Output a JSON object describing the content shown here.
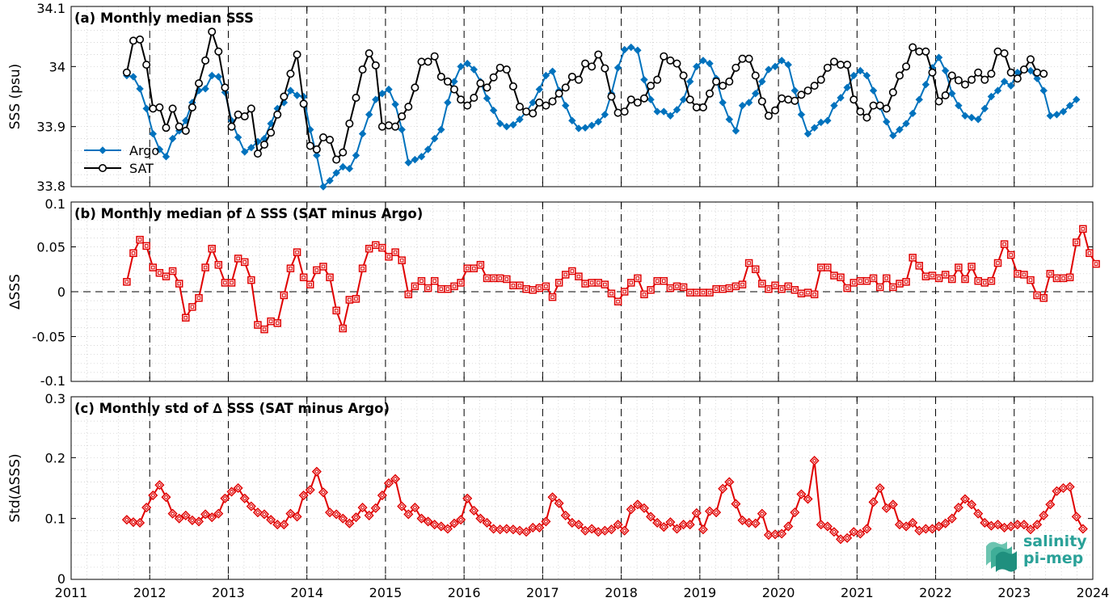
{
  "colors": {
    "argo": "#0072bd",
    "sat": "#000000",
    "delta": "#e00000",
    "logo": "#2aa198"
  },
  "logo": {
    "line1": "salinity",
    "line2": "pi-mep",
    "icon": "stacked-waves-logo"
  },
  "chart_data": [
    {
      "type": "line",
      "title": "(a) Monthly median SSS",
      "xlabel": "",
      "ylabel": "SSS (psu)",
      "xlim": [
        2011,
        2024
      ],
      "ylim": [
        33.8,
        34.1
      ],
      "yticks": [
        "33.8",
        "33.9",
        "34",
        "34.1"
      ],
      "grid": true,
      "legend_position": "lower-left",
      "start": "2011-09",
      "series": [
        {
          "name": "Argo",
          "marker": "diamond-filled",
          "values": [
            33.985,
            33.983,
            33.963,
            33.93,
            33.888,
            33.862,
            33.85,
            33.88,
            33.893,
            33.91,
            33.94,
            33.96,
            33.963,
            33.985,
            33.983,
            33.957,
            33.91,
            33.882,
            33.858,
            33.865,
            33.875,
            33.88,
            33.905,
            33.93,
            33.94,
            33.96,
            33.952,
            33.95,
            33.895,
            33.852,
            33.8,
            33.81,
            33.823,
            33.833,
            33.83,
            33.852,
            33.888,
            33.92,
            33.945,
            33.955,
            33.962,
            33.937,
            33.895,
            33.84,
            33.845,
            33.85,
            33.862,
            33.88,
            33.895,
            33.94,
            33.975,
            34.0,
            34.005,
            33.995,
            33.975,
            33.947,
            33.927,
            33.905,
            33.9,
            33.903,
            33.912,
            33.925,
            33.94,
            33.962,
            33.985,
            33.992,
            33.96,
            33.935,
            33.91,
            33.897,
            33.898,
            33.902,
            33.908,
            33.92,
            33.955,
            33.998,
            34.028,
            34.032,
            34.027,
            33.978,
            33.945,
            33.925,
            33.925,
            33.918,
            33.928,
            33.945,
            33.975,
            34.0,
            34.01,
            34.005,
            33.98,
            33.94,
            33.912,
            33.893,
            33.935,
            33.94,
            33.955,
            33.975,
            33.995,
            34.0,
            34.01,
            34.003,
            33.96,
            33.92,
            33.888,
            33.898,
            33.907,
            33.91,
            33.935,
            33.948,
            33.965,
            33.985,
            33.993,
            33.985,
            33.96,
            33.933,
            33.908,
            33.885,
            33.895,
            33.905,
            33.922,
            33.945,
            33.97,
            33.998,
            34.015,
            33.993,
            33.955,
            33.935,
            33.918,
            33.915,
            33.912,
            33.93,
            33.95,
            33.96,
            33.975,
            33.968,
            33.99,
            33.995,
            33.993,
            33.98,
            33.96,
            33.918,
            33.92,
            33.925,
            33.935,
            33.945
          ]
        },
        {
          "name": "SAT",
          "marker": "circle-open",
          "values": [
            33.99,
            34.043,
            34.045,
            34.003,
            33.93,
            33.932,
            33.898,
            33.93,
            33.9,
            33.893,
            33.932,
            33.972,
            34.01,
            34.058,
            34.025,
            33.965,
            33.9,
            33.92,
            33.917,
            33.93,
            33.855,
            33.87,
            33.89,
            33.92,
            33.95,
            33.988,
            34.02,
            33.938,
            33.868,
            33.862,
            33.882,
            33.878,
            33.845,
            33.857,
            33.905,
            33.948,
            33.995,
            34.022,
            34.002,
            33.9,
            33.902,
            33.9,
            33.917,
            33.933,
            33.965,
            34.008,
            34.008,
            34.017,
            33.983,
            33.975,
            33.962,
            33.945,
            33.935,
            33.948,
            33.972,
            33.965,
            33.982,
            33.998,
            33.995,
            33.967,
            33.933,
            33.925,
            33.922,
            33.94,
            33.935,
            33.942,
            33.955,
            33.965,
            33.983,
            33.978,
            34.005,
            34.0,
            34.02,
            33.997,
            33.95,
            33.923,
            33.925,
            33.945,
            33.94,
            33.947,
            33.968,
            33.978,
            34.017,
            34.01,
            34.005,
            33.985,
            33.945,
            33.932,
            33.932,
            33.955,
            33.975,
            33.968,
            33.975,
            33.998,
            34.013,
            34.013,
            33.985,
            33.942,
            33.918,
            33.927,
            33.947,
            33.945,
            33.943,
            33.953,
            33.96,
            33.968,
            33.978,
            33.998,
            34.008,
            34.003,
            34.003,
            33.945,
            33.925,
            33.915,
            33.935,
            33.935,
            33.93,
            33.957,
            33.985,
            34.0,
            34.032,
            34.025,
            34.025,
            33.99,
            33.942,
            33.952,
            33.985,
            33.977,
            33.97,
            33.978,
            33.99,
            33.978,
            33.988,
            34.025,
            34.022,
            33.99,
            33.98,
            33.995,
            34.012,
            33.99,
            33.988
          ]
        }
      ]
    },
    {
      "type": "line",
      "title": "(b) Monthly median of ∆ SSS (SAT minus Argo)",
      "xlabel": "",
      "ylabel": "∆SSS",
      "xlim": [
        2011,
        2024
      ],
      "ylim": [
        -0.1,
        0.1
      ],
      "yticks": [
        "-0.1",
        "-0.05",
        "0",
        "0.05",
        "0.1"
      ],
      "grid": true,
      "zero_line": true,
      "start": "2011-09",
      "series": [
        {
          "marker": "square-open",
          "values": [
            0.011,
            0.043,
            0.058,
            0.051,
            0.027,
            0.021,
            0.017,
            0.023,
            0.009,
            -0.029,
            -0.017,
            -0.007,
            0.027,
            0.048,
            0.03,
            0.01,
            0.01,
            0.037,
            0.033,
            0.013,
            -0.037,
            -0.042,
            -0.033,
            -0.035,
            -0.004,
            0.026,
            0.044,
            0.016,
            0.008,
            0.024,
            0.028,
            0.016,
            -0.021,
            -0.041,
            -0.009,
            -0.008,
            0.026,
            0.048,
            0.052,
            0.049,
            0.039,
            0.044,
            0.035,
            -0.003,
            0.006,
            0.012,
            0.004,
            0.012,
            0.003,
            0.003,
            0.006,
            0.01,
            0.026,
            0.026,
            0.03,
            0.015,
            0.015,
            0.015,
            0.014,
            0.007,
            0.007,
            0.003,
            0.002,
            0.004,
            0.006,
            -0.006,
            0.01,
            0.019,
            0.023,
            0.017,
            0.009,
            0.01,
            0.01,
            0.008,
            -0.002,
            -0.011,
            0.0,
            0.01,
            0.015,
            -0.003,
            0.002,
            0.012,
            0.012,
            0.004,
            0.006,
            0.005,
            -0.001,
            -0.001,
            -0.001,
            -0.001,
            0.003,
            0.003,
            0.004,
            0.006,
            0.008,
            0.032,
            0.025,
            0.009,
            0.003,
            0.007,
            0.003,
            0.006,
            0.002,
            -0.002,
            -0.001,
            -0.003,
            0.027,
            0.027,
            0.018,
            0.016,
            0.004,
            0.01,
            0.012,
            0.012,
            0.015,
            0.005,
            0.015,
            0.005,
            0.009,
            0.011,
            0.038,
            0.029,
            0.017,
            0.018,
            0.015,
            0.019,
            0.014,
            0.027,
            0.014,
            0.028,
            0.012,
            0.01,
            0.012,
            0.032,
            0.053,
            0.041,
            0.02,
            0.019,
            0.013,
            -0.004,
            -0.007,
            0.02,
            0.015,
            0.015,
            0.016,
            0.055,
            0.07,
            0.043,
            0.031
          ]
        }
      ]
    },
    {
      "type": "line",
      "title": "(c) Monthly std of ∆ SSS (SAT minus Argo)",
      "xlabel": "",
      "ylabel": "Std(∆SSS)",
      "xlim": [
        2011,
        2024
      ],
      "ylim": [
        0,
        0.3
      ],
      "yticks": [
        "0",
        "0.1",
        "0.2",
        "0.3"
      ],
      "xticks": [
        "2011",
        "2012",
        "2013",
        "2014",
        "2015",
        "2016",
        "2017",
        "2018",
        "2019",
        "2020",
        "2021",
        "2022",
        "2023",
        "2024"
      ],
      "grid": true,
      "start": "2011-09",
      "series": [
        {
          "marker": "diamond-open",
          "values": [
            0.098,
            0.094,
            0.093,
            0.118,
            0.138,
            0.155,
            0.135,
            0.108,
            0.1,
            0.105,
            0.097,
            0.095,
            0.107,
            0.102,
            0.108,
            0.133,
            0.144,
            0.15,
            0.133,
            0.12,
            0.11,
            0.107,
            0.098,
            0.09,
            0.09,
            0.108,
            0.103,
            0.138,
            0.147,
            0.177,
            0.143,
            0.11,
            0.107,
            0.1,
            0.092,
            0.102,
            0.118,
            0.105,
            0.117,
            0.138,
            0.158,
            0.165,
            0.12,
            0.107,
            0.118,
            0.1,
            0.095,
            0.09,
            0.087,
            0.083,
            0.092,
            0.098,
            0.133,
            0.113,
            0.1,
            0.093,
            0.083,
            0.082,
            0.083,
            0.082,
            0.08,
            0.078,
            0.085,
            0.085,
            0.095,
            0.135,
            0.125,
            0.105,
            0.093,
            0.09,
            0.08,
            0.083,
            0.078,
            0.08,
            0.082,
            0.09,
            0.08,
            0.115,
            0.123,
            0.117,
            0.103,
            0.093,
            0.086,
            0.094,
            0.083,
            0.09,
            0.09,
            0.109,
            0.082,
            0.112,
            0.11,
            0.149,
            0.16,
            0.124,
            0.097,
            0.093,
            0.092,
            0.108,
            0.073,
            0.074,
            0.075,
            0.087,
            0.11,
            0.14,
            0.132,
            0.195,
            0.09,
            0.087,
            0.078,
            0.066,
            0.068,
            0.078,
            0.075,
            0.083,
            0.127,
            0.15,
            0.117,
            0.123,
            0.09,
            0.087,
            0.093,
            0.08,
            0.083,
            0.083,
            0.087,
            0.092,
            0.1,
            0.118,
            0.132,
            0.123,
            0.108,
            0.093,
            0.088,
            0.09,
            0.085,
            0.087,
            0.09,
            0.09,
            0.082,
            0.09,
            0.105,
            0.123,
            0.145,
            0.15,
            0.152,
            0.103,
            0.083
          ]
        }
      ]
    }
  ]
}
